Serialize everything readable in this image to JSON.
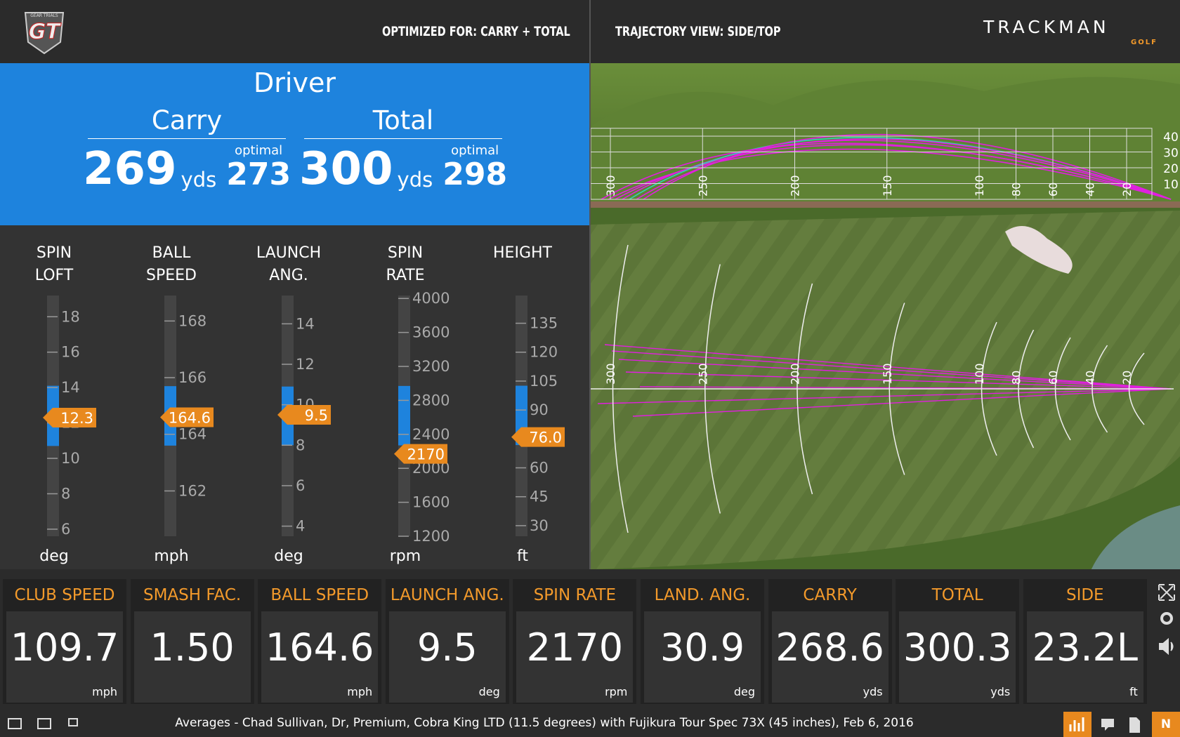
{
  "header": {
    "logo": "GT",
    "logo_sub": "GEAR TRIALS",
    "optimized_for": "OPTIMIZED FOR: CARRY + TOTAL",
    "trajectory_view": "TRAJECTORY VIEW: SIDE/TOP",
    "brand": "TRACKMAN",
    "brand_sub": "GOLF"
  },
  "summary": {
    "club": "Driver",
    "results": [
      {
        "label": "Carry",
        "value": "269",
        "unit": "yds",
        "optimal_label": "optimal",
        "optimal": "273"
      },
      {
        "label": "Total",
        "value": "300",
        "unit": "yds",
        "optimal_label": "optimal",
        "optimal": "298"
      }
    ]
  },
  "gauges": [
    {
      "title": [
        "SPIN",
        "LOFT"
      ],
      "unit": "deg",
      "ylim": [
        5.6,
        19.2
      ],
      "yticks": [
        6,
        8,
        10,
        12,
        14,
        16,
        18
      ],
      "optimal_range": [
        10.7,
        14.1
      ],
      "value": 12.3
    },
    {
      "title": [
        "BALL",
        "SPEED"
      ],
      "unit": "mph",
      "ylim": [
        160.4,
        168.9
      ],
      "yticks": [
        162,
        164,
        166,
        168
      ],
      "optimal_range": [
        163.6,
        165.7
      ],
      "value": 164.6
    },
    {
      "title": [
        "LAUNCH",
        "ANG."
      ],
      "unit": "deg",
      "ylim": [
        3.5,
        15.4
      ],
      "yticks": [
        4,
        6,
        8,
        10,
        12,
        14
      ],
      "optimal_range": [
        8.0,
        10.9
      ],
      "value": 9.5
    },
    {
      "title": [
        "SPIN",
        "RATE"
      ],
      "unit": "rpm",
      "ylim": [
        1200,
        4035
      ],
      "yticks": [
        1200,
        1600,
        2000,
        2400,
        2800,
        3200,
        3600,
        4000
      ],
      "optimal_range": [
        2270,
        2970
      ],
      "value": 2170
    },
    {
      "title": [
        "HEIGHT"
      ],
      "unit": "ft",
      "ylim": [
        24.5,
        149.4
      ],
      "yticks": [
        30,
        45,
        60,
        75,
        90,
        105,
        120,
        135
      ],
      "optimal_range": [
        71.8,
        102.6
      ],
      "value": 76,
      "value_label": "76.0"
    }
  ],
  "trajectory": {
    "side_distances": [
      300,
      250,
      200,
      150,
      100,
      80,
      60,
      40,
      20
    ],
    "heights": [
      40,
      30,
      20,
      10
    ],
    "top_distances": [
      300,
      250,
      200,
      150,
      100,
      80,
      60,
      40,
      20
    ]
  },
  "metrics": [
    {
      "label": "CLUB SPEED",
      "value": "109.7",
      "unit": "mph"
    },
    {
      "label": "SMASH FAC.",
      "value": "1.50"
    },
    {
      "label": "BALL SPEED",
      "value": "164.6",
      "unit": "mph"
    },
    {
      "label": "LAUNCH ANG.",
      "value": "9.5",
      "unit": "deg"
    },
    {
      "label": "SPIN RATE",
      "value": "2170",
      "unit": "rpm"
    },
    {
      "label": "LAND. ANG.",
      "value": "30.9",
      "unit": "deg"
    },
    {
      "label": "CARRY",
      "value": "268.6",
      "unit": "yds"
    },
    {
      "label": "TOTAL",
      "value": "300.3",
      "unit": "yds"
    },
    {
      "label": "SIDE",
      "value": "23.2L",
      "unit": "ft"
    }
  ],
  "footer": {
    "info": "Averages - Chad Sullivan, Dr, Premium, Cobra King LTD (11.5 degrees) with Fujikura Tour Spec 73X (45 inches), Feb 6, 2016",
    "badge": "N"
  }
}
